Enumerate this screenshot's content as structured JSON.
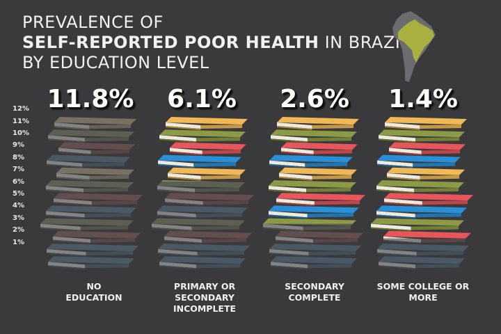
{
  "title": {
    "line1": "PREVALENCE OF",
    "line2_bold": "SELF-REPORTED POOR HEALTH",
    "line2_rest": " IN BRAZIL",
    "line3": "BY EDUCATION LEVEL"
  },
  "map_icon": "south-america-map-brazil-highlighted",
  "colors": {
    "background": "#3a3a3c",
    "book_yellow": "#f0b955",
    "book_olive": "#8c9a45",
    "book_red": "#e8555a",
    "book_blue": "#2a8fd6",
    "brazil": "#a9b040",
    "continent": "#6b6b70"
  },
  "chart_data": {
    "type": "bar",
    "title": "PREVALENCE OF SELF-REPORTED POOR HEALTH IN BRAZIL BY EDUCATION LEVEL",
    "categories": [
      "NO\nEDUCATION",
      "PRIMARY OR\nSECONDARY\nINCOMPLETE",
      "SECONDARY\nCOMPLETE",
      "SOME COLLEGE OR\nMORE"
    ],
    "values": [
      11.8,
      6.1,
      2.6,
      1.4
    ],
    "value_labels": [
      "11.8%",
      "6.1%",
      "2.6%",
      "1.4%"
    ],
    "unit": "%",
    "ylim": [
      0,
      12
    ],
    "yticks": [
      "12%",
      "11%",
      "10%",
      "9%",
      "8%",
      "7%",
      "6%",
      "5%",
      "4%",
      "3%",
      "2%",
      "1%"
    ],
    "ytick_values": [
      12,
      11,
      10,
      9,
      8,
      7,
      6,
      5,
      4,
      3,
      2,
      1
    ],
    "grid": false,
    "legend": "none"
  }
}
